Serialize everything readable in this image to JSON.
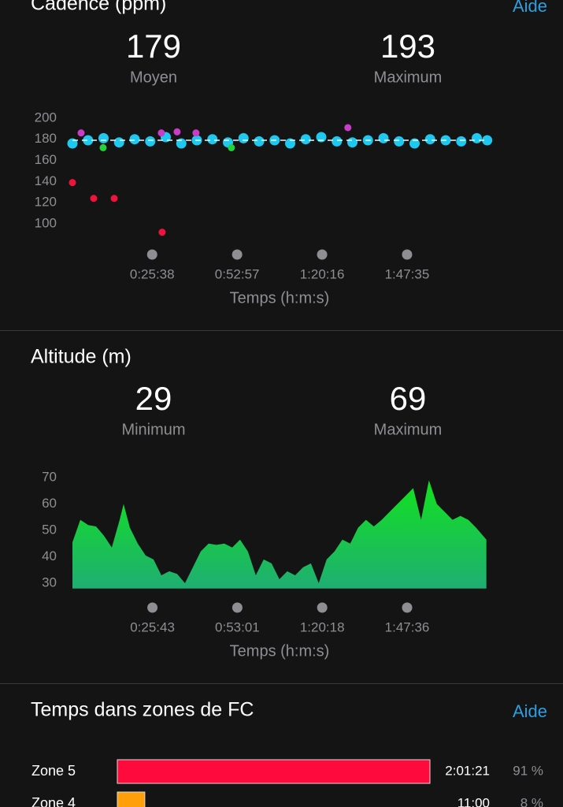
{
  "cadence": {
    "title": "Cadence (ppm)",
    "help": "Aide",
    "stats": [
      {
        "value": 179,
        "label": "Moyen"
      },
      {
        "value": 193,
        "label": "Maximum"
      }
    ],
    "chart": {
      "type": "scatter",
      "xlim": [
        0,
        8020
      ],
      "ylim": [
        88,
        207
      ],
      "yticks": [
        100,
        120,
        140,
        160,
        180,
        200
      ],
      "xticks": [
        {
          "value": 1538,
          "label": "0:25:38"
        },
        {
          "value": 3177,
          "label": "0:52:57"
        },
        {
          "value": 4816,
          "label": "1:20:16"
        },
        {
          "value": 6455,
          "label": "1:47:35"
        }
      ],
      "x_label": "Temps (h:m:s)",
      "series": [
        {
          "color": "#1ec8f0",
          "x": [
            0,
            300,
            600,
            900,
            1200,
            1500,
            1800,
            2100,
            2400,
            2700,
            3000,
            3300,
            3600,
            3900,
            4200,
            4500,
            4800,
            5100,
            5400,
            5700,
            6000,
            6300,
            6600,
            6900,
            7200,
            7500,
            7800,
            8000
          ],
          "values": [
            176,
            179,
            181,
            177,
            180,
            178,
            182,
            176,
            179,
            180,
            177,
            181,
            178,
            179,
            176,
            180,
            182,
            178,
            177,
            179,
            181,
            178,
            176,
            180,
            179,
            178,
            181,
            179
          ]
        },
        {
          "color": "#c83cc8",
          "x": [
            167,
            1715,
            2019,
            2383,
            5313
          ],
          "values": [
            186,
            186,
            187,
            186,
            191
          ]
        },
        {
          "color": "#22d23c",
          "x": [
            592,
            3066
          ],
          "values": [
            172,
            172
          ]
        },
        {
          "color": "#f0143c",
          "x": [
            0,
            410,
            805,
            1730
          ],
          "values": [
            139,
            124,
            124,
            92
          ]
        }
      ]
    }
  },
  "altitude": {
    "title": "Altitude (m)",
    "stats": [
      {
        "value": 29,
        "label": "Minimum"
      },
      {
        "value": 69,
        "label": "Maximum"
      }
    ],
    "chart": {
      "type": "area",
      "xlim": [
        0,
        8020
      ],
      "ylim": [
        28,
        72
      ],
      "yticks": [
        30,
        40,
        50,
        60,
        70
      ],
      "xticks": [
        {
          "value": 1543,
          "label": "0:25:43"
        },
        {
          "value": 3181,
          "label": "0:53:01"
        },
        {
          "value": 4818,
          "label": "1:20:18"
        },
        {
          "value": 6456,
          "label": "1:47:36"
        }
      ],
      "x_label": "Temps (h:m:s)",
      "x": [
        0,
        152,
        304,
        455,
        607,
        759,
        911,
        987,
        1108,
        1260,
        1412,
        1564,
        1715,
        1867,
        2019,
        2171,
        2323,
        2474,
        2626,
        2778,
        2930,
        3082,
        3233,
        3385,
        3537,
        3689,
        3841,
        3992,
        4144,
        4296,
        4448,
        4600,
        4751,
        4903,
        5055,
        5207,
        5359,
        5510,
        5662,
        5814,
        5966,
        6118,
        6269,
        6421,
        6573,
        6725,
        6877,
        7028,
        7180,
        7332,
        7484,
        7636,
        7787,
        7985
      ],
      "values": [
        45.5,
        54,
        52,
        51.5,
        48,
        43.5,
        54,
        60,
        51,
        45,
        40.5,
        39,
        33,
        34.5,
        33.5,
        30,
        36,
        42,
        45,
        44.5,
        45,
        43.5,
        46.5,
        42,
        33,
        39,
        37.5,
        31.5,
        34.5,
        33,
        36,
        37.5,
        30,
        39,
        42,
        46.5,
        45,
        51,
        54,
        51.5,
        54,
        57,
        60,
        63,
        66,
        54,
        69,
        60,
        57,
        54,
        55.5,
        54,
        51,
        46.5
      ]
    }
  },
  "hr_zones": {
    "title": "Temps dans zones de FC",
    "help": "Aide",
    "chart": {
      "type": "bar",
      "xlim": [
        0,
        91
      ],
      "categories": [
        "Zone 5",
        "Zone 4"
      ],
      "values": [
        91,
        8
      ],
      "value_labels": [
        "91 %",
        "8 %"
      ],
      "times": [
        "2:01:21",
        "11:00"
      ],
      "colors": [
        "#ff0a3c",
        "#ff9f0a"
      ]
    }
  }
}
